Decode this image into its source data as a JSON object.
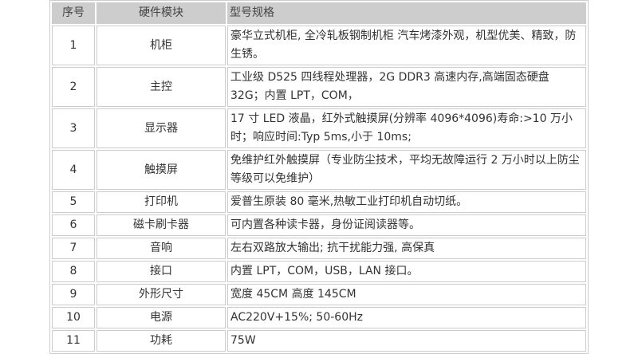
{
  "table": {
    "headers": [
      "序号",
      "硬件模块",
      "型号规格"
    ],
    "rows": [
      {
        "no": "1",
        "module": "机柜",
        "spec": "豪华立式机柜, 全冷轧板钢制机柜 汽车烤漆外观，机型优美、精致，防生锈。"
      },
      {
        "no": "2",
        "module": "主控",
        "spec": "工业级 D525 四线程处理器，2G DDR3 高速内存,高端固态硬盘 32G；内置 LPT，COM，"
      },
      {
        "no": "3",
        "module": "显示器",
        "spec": "17 寸 LED 液晶，红外式触摸屏(分辨率 4096*4096)寿命:>10 万小时；响应时间:Typ 5ms,小于 10ms;"
      },
      {
        "no": "4",
        "module": "触摸屏",
        "spec": "免维护红外触摸屏（专业防尘技术，平均无故障运行 2 万小时以上防尘等级可以免维护）"
      },
      {
        "no": "5",
        "module": "打印机",
        "spec": "爱普生原装 80 毫米,热敏工业打印机自动切纸。"
      },
      {
        "no": "6",
        "module": "磁卡刷卡器",
        "spec": "可内置各种读卡器，身份证阅读器等。"
      },
      {
        "no": "7",
        "module": "音响",
        "spec": "左右双路放大输出; 抗干扰能力强, 高保真"
      },
      {
        "no": "8",
        "module": "接口",
        "spec": "内置 LPT，COM，USB，LAN 接口。"
      },
      {
        "no": "9",
        "module": "外形尺寸",
        "spec": "宽度 45CM 高度 145CM"
      },
      {
        "no": "10",
        "module": "电源",
        "spec": "AC220V+15%; 50-60Hz"
      },
      {
        "no": "11",
        "module": "功耗",
        "spec": "75W"
      }
    ]
  },
  "colors": {
    "page_bg": "#ffffff",
    "header_bg": "#cdcdcd",
    "border": "#cccccc",
    "header_text": "#444444",
    "body_text": "#333333"
  }
}
